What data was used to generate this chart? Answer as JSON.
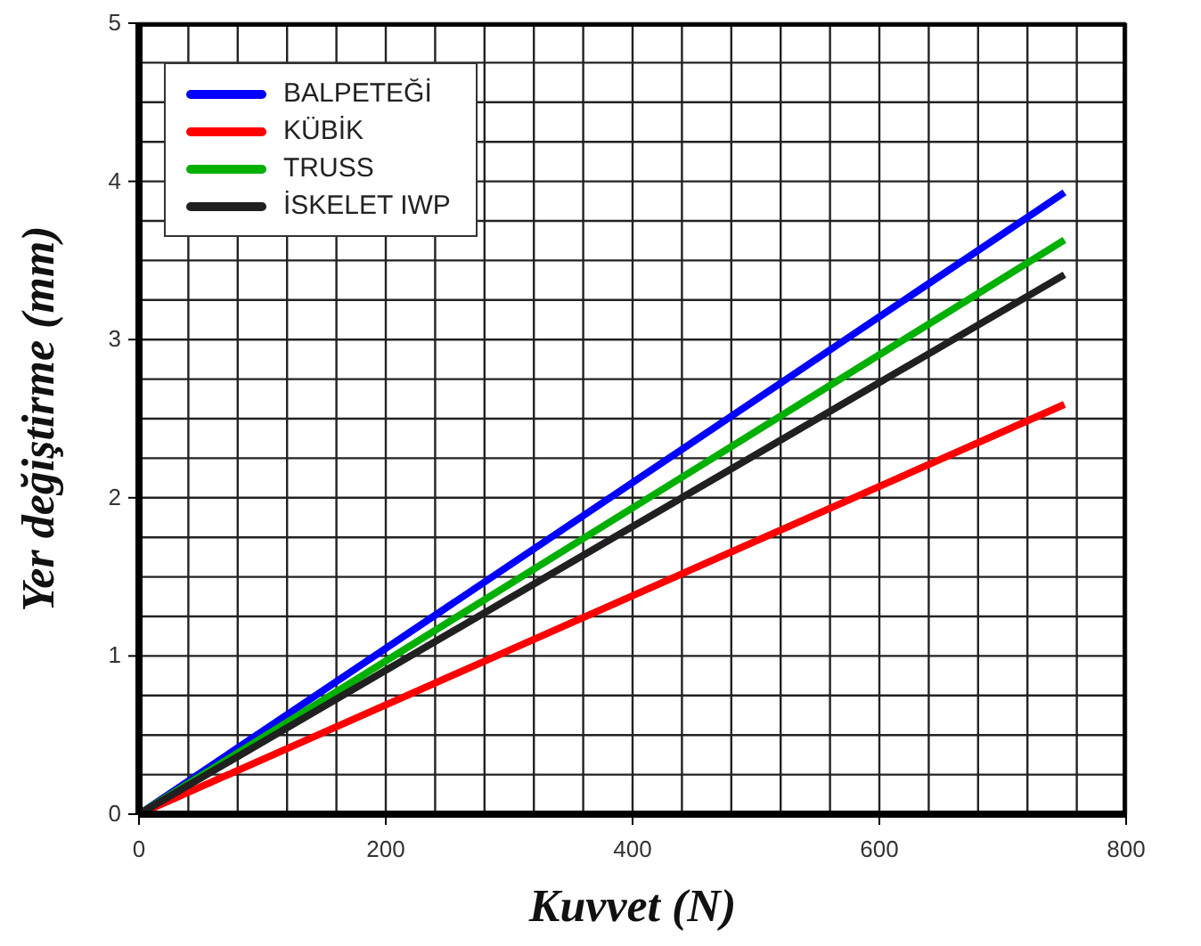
{
  "chart_data": {
    "type": "line",
    "xlabel": "Kuvvet (N)",
    "ylabel": "Yer değiştirme (mm)",
    "x": [
      0,
      750
    ],
    "series": [
      {
        "name": "BALPETEĞİ",
        "color": "#0000ff",
        "values": [
          0,
          3.93
        ]
      },
      {
        "name": "KÜBİK",
        "color": "#ff0000",
        "values": [
          0,
          2.59
        ]
      },
      {
        "name": "TRUSS",
        "color": "#00b000",
        "values": [
          0,
          3.63
        ]
      },
      {
        "name": "İSKELET IWP",
        "color": "#202020",
        "values": [
          0,
          3.41
        ]
      }
    ],
    "xlim": [
      0,
      800
    ],
    "ylim": [
      0,
      5
    ],
    "xticks": [
      0,
      {
        "value": 40,
        "label": null
      },
      {
        "value": 80,
        "label": null
      },
      {
        "value": 120,
        "label": null
      },
      {
        "value": 160,
        "label": null
      },
      200,
      {
        "value": 240,
        "label": null
      },
      {
        "value": 280,
        "label": null
      },
      {
        "value": 320,
        "label": null
      },
      {
        "value": 360,
        "label": null
      },
      400,
      {
        "value": 440,
        "label": null
      },
      {
        "value": 480,
        "label": null
      },
      {
        "value": 520,
        "label": null
      },
      {
        "value": 560,
        "label": null
      },
      600,
      {
        "value": 640,
        "label": null
      },
      {
        "value": 680,
        "label": null
      },
      {
        "value": 720,
        "label": null
      },
      {
        "value": 760,
        "label": null
      },
      800
    ],
    "yticks": [
      0,
      {
        "value": 0.25,
        "label": null
      },
      {
        "value": 0.5,
        "label": null
      },
      {
        "value": 0.75,
        "label": null
      },
      1,
      {
        "value": 1.25,
        "label": null
      },
      {
        "value": 1.5,
        "label": null
      },
      {
        "value": 1.75,
        "label": null
      },
      2,
      {
        "value": 2.25,
        "label": null
      },
      {
        "value": 2.5,
        "label": null
      },
      {
        "value": 2.75,
        "label": null
      },
      3,
      {
        "value": 3.25,
        "label": null
      },
      {
        "value": 3.5,
        "label": null
      },
      {
        "value": 3.75,
        "label": null
      },
      4,
      {
        "value": 4.25,
        "label": null
      },
      {
        "value": 4.5,
        "label": null
      },
      {
        "value": 4.75,
        "label": null
      },
      5
    ],
    "grid": true,
    "legend": "top left",
    "marker": "none",
    "line_style": "solid"
  }
}
